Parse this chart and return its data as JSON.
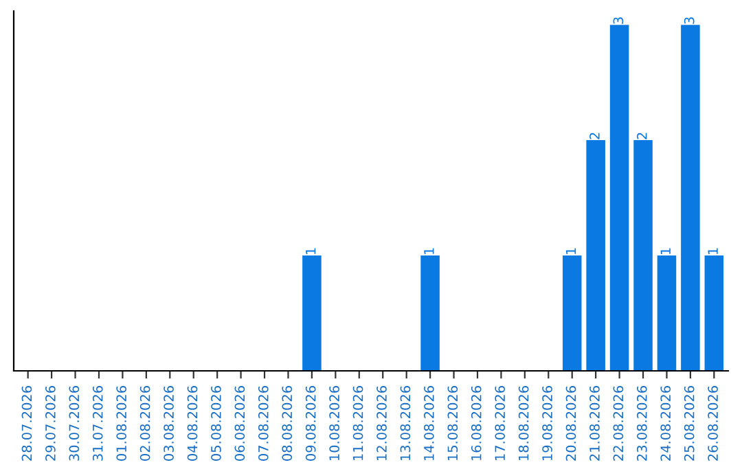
{
  "chart_data": {
    "type": "bar",
    "categories": [
      "28.07.2026",
      "29.07.2026",
      "30.07.2026",
      "31.07.2026",
      "01.08.2026",
      "02.08.2026",
      "03.08.2026",
      "04.08.2026",
      "05.08.2026",
      "06.08.2026",
      "07.08.2026",
      "08.08.2026",
      "09.08.2026",
      "10.08.2026",
      "11.08.2026",
      "12.08.2026",
      "13.08.2026",
      "14.08.2026",
      "15.08.2026",
      "16.08.2026",
      "17.08.2026",
      "18.08.2026",
      "19.08.2026",
      "20.08.2026",
      "21.08.2026",
      "22.08.2026",
      "23.08.2026",
      "24.08.2026",
      "25.08.2026",
      "26.08.2026"
    ],
    "values": [
      null,
      null,
      null,
      null,
      null,
      null,
      null,
      null,
      null,
      null,
      null,
      null,
      1,
      null,
      null,
      null,
      null,
      1,
      null,
      null,
      null,
      null,
      null,
      1,
      2,
      3,
      2,
      1,
      3,
      1
    ],
    "data_labels": true,
    "color": "#0a7ae2",
    "grid": false,
    "legend": false
  }
}
